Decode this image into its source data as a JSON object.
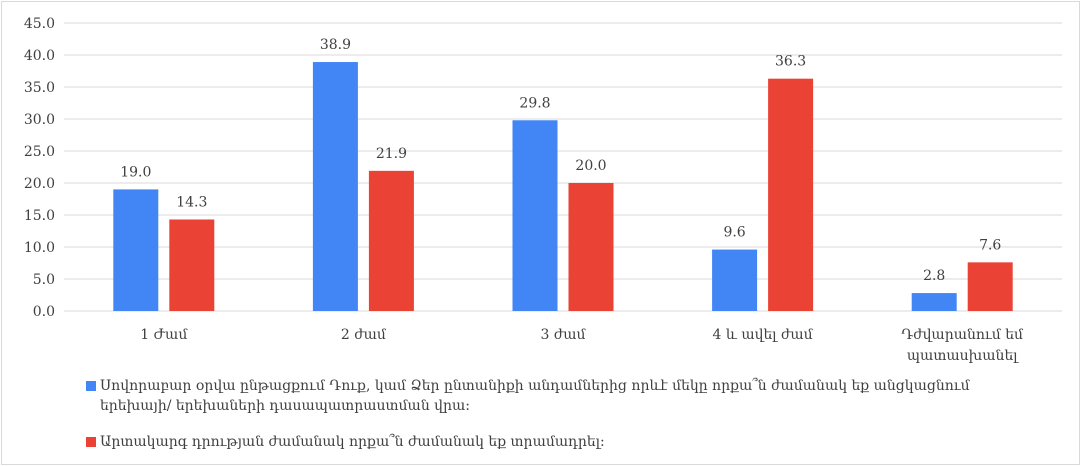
{
  "chart_data": {
    "type": "bar",
    "categories": [
      "1 Ժամ",
      "2 ժամ",
      "3 ժամ",
      "4 և ավել ժամ",
      "Դժվարանում եմ պատասխանել"
    ],
    "category_lines": [
      [
        "1 Ժամ"
      ],
      [
        "2 ժամ"
      ],
      [
        "3 ժամ"
      ],
      [
        "4 և ավել ժամ"
      ],
      [
        "Դժվարանում եմ",
        "պատասխանել"
      ]
    ],
    "series": [
      {
        "name": "Սովորաբար օրվա ընթացքում Դուք, կամ Ձեր ընտանիքի անդամներից որևէ մեկը որքա՞ն ժամանակ եք անցկացնում երեխայի/ երեխաների դասապատրաստման վրա։",
        "color": "#4285f4",
        "values": [
          19.0,
          38.9,
          29.8,
          9.6,
          2.8
        ],
        "labels": [
          "19.0",
          "38.9",
          "29.8",
          "9.6",
          "2.8"
        ]
      },
      {
        "name": "Արտակարգ դրության ժամանակ որքա՞ն ժամանակ եք տրամադրել։",
        "color": "#ea4335",
        "values": [
          14.3,
          21.9,
          20.0,
          36.3,
          7.6
        ],
        "labels": [
          "14.3",
          "21.9",
          "20.0",
          "36.3",
          "7.6"
        ]
      }
    ],
    "yticks": [
      "0.0",
      "5.0",
      "10.0",
      "15.0",
      "20.0",
      "25.0",
      "30.0",
      "35.0",
      "40.0",
      "45.0"
    ],
    "ylim": [
      0,
      45
    ],
    "title": "",
    "xlabel": "",
    "ylabel": "",
    "grid": true,
    "gridColor": "#d9d9d9",
    "legend_position": "bottom"
  }
}
